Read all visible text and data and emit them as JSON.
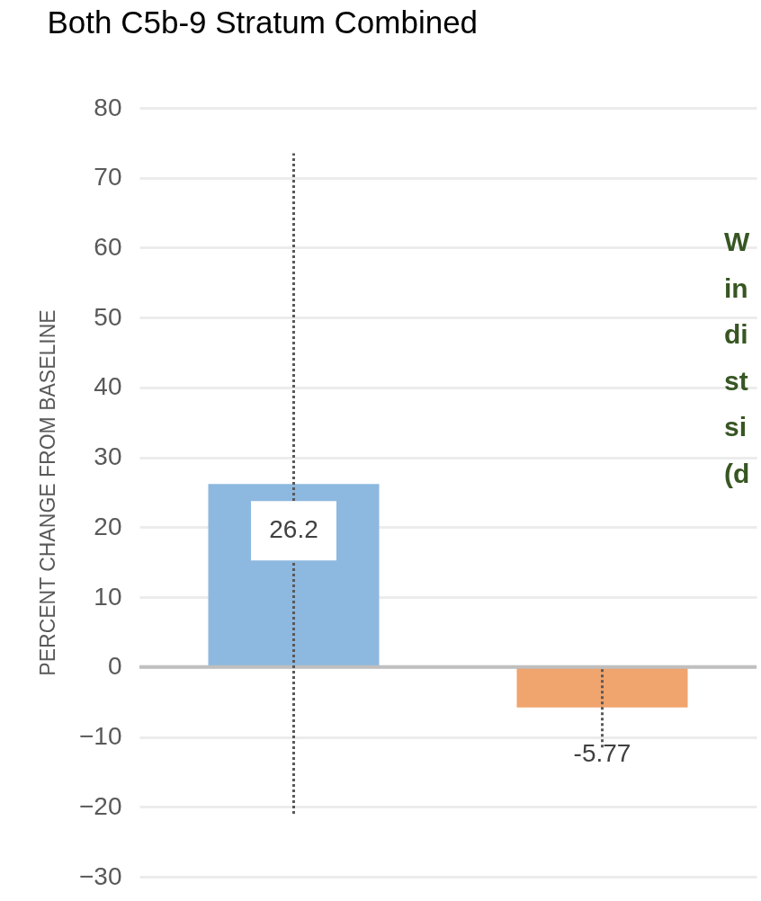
{
  "chart_data": {
    "type": "bar",
    "title": "Both C5b-9 Stratum Combined",
    "ylabel": "PERCENT CHANGE FROM BASELINE",
    "categories": [
      null,
      null
    ],
    "values": [
      26.2,
      -5.77
    ],
    "colors": [
      "#8db8e0",
      "#f0a46e"
    ],
    "errors": [
      [
        -21,
        73.5
      ],
      [
        -11.5,
        0
      ]
    ],
    "data_labels": true,
    "ylim": [
      -30,
      80
    ],
    "yticks": [
      -30,
      -20,
      -10,
      0,
      10,
      20,
      30,
      40,
      50,
      60,
      70,
      80
    ],
    "grid": "y",
    "annotations": [
      "W",
      "in",
      "di",
      "st",
      "si",
      "(d"
    ]
  }
}
